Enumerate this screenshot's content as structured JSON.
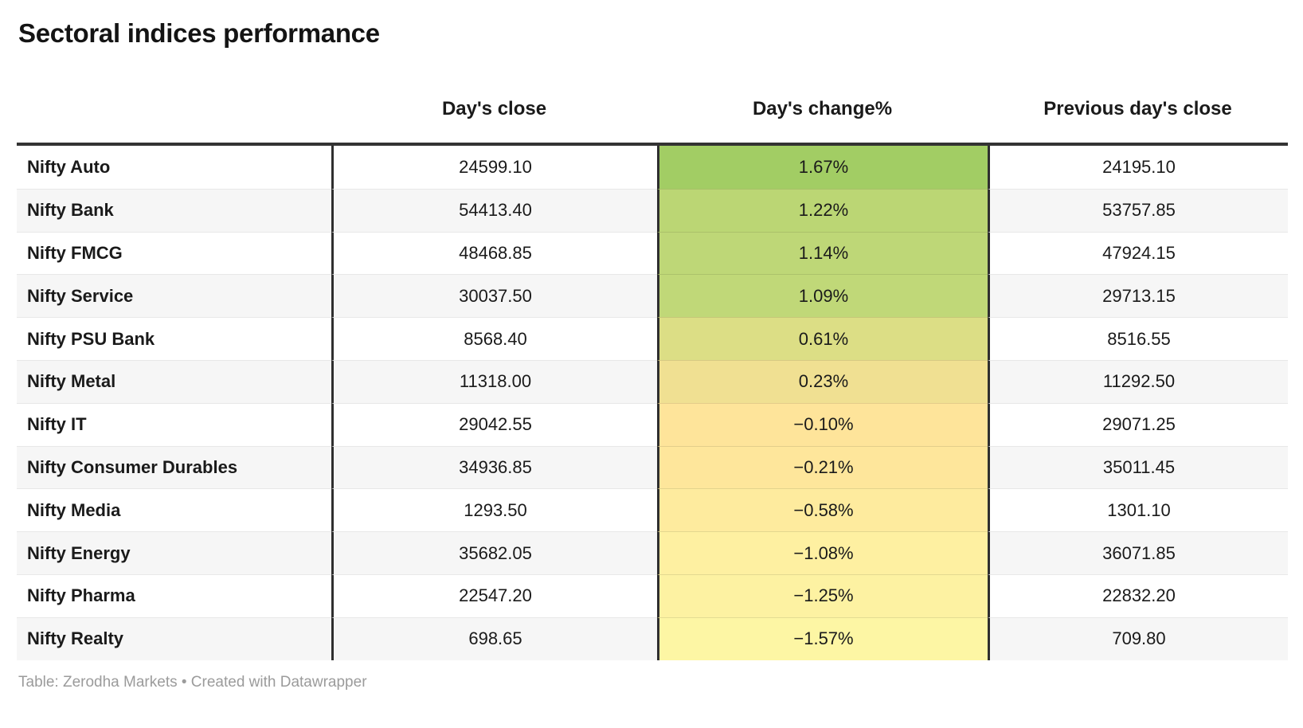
{
  "title": "Sectoral indices performance",
  "columns": {
    "label": "",
    "close": "Day's close",
    "change": "Day's change%",
    "prev": "Previous day's close"
  },
  "rows": [
    {
      "label": "Nifty Auto",
      "close": "24599.10",
      "change": "1.67%",
      "prev": "24195.10",
      "color": "#a2cd64"
    },
    {
      "label": "Nifty Bank",
      "close": "54413.40",
      "change": "1.22%",
      "prev": "53757.85",
      "color": "#bbd674"
    },
    {
      "label": "Nifty FMCG",
      "close": "48468.85",
      "change": "1.14%",
      "prev": "47924.15",
      "color": "#bed777"
    },
    {
      "label": "Nifty Service",
      "close": "30037.50",
      "change": "1.09%",
      "prev": "29713.15",
      "color": "#c0d878"
    },
    {
      "label": "Nifty PSU Bank",
      "close": "8568.40",
      "change": "0.61%",
      "prev": "8516.55",
      "color": "#dcde85"
    },
    {
      "label": "Nifty Metal",
      "close": "11318.00",
      "change": "0.23%",
      "prev": "11292.50",
      "color": "#f0e092"
    },
    {
      "label": "Nifty IT",
      "close": "29042.55",
      "change": "−0.10%",
      "prev": "29071.25",
      "color": "#fee49a"
    },
    {
      "label": "Nifty Consumer Durables",
      "close": "34936.85",
      "change": "−0.21%",
      "prev": "35011.45",
      "color": "#fee69b"
    },
    {
      "label": "Nifty Media",
      "close": "1293.50",
      "change": "−0.58%",
      "prev": "1301.10",
      "color": "#feeb9e"
    },
    {
      "label": "Nifty Energy",
      "close": "35682.05",
      "change": "−1.08%",
      "prev": "36071.85",
      "color": "#fef0a1"
    },
    {
      "label": "Nifty Pharma",
      "close": "22547.20",
      "change": "−1.25%",
      "prev": "22832.20",
      "color": "#fdf2a2"
    },
    {
      "label": "Nifty Realty",
      "close": "698.65",
      "change": "−1.57%",
      "prev": "709.80",
      "color": "#fdf6a4"
    }
  ],
  "footer": "Table: Zerodha Markets • Created with Datawrapper",
  "style_colors": {
    "border_dark": "#333333",
    "row_stripe": "#f6f6f6",
    "row_separator": "#e8e8e8",
    "footer_text": "#9b9b9b",
    "heatmap_max_green": "#a2cd64",
    "heatmap_min_yellow": "#fdf6a4"
  },
  "chart_data": {
    "type": "table",
    "title": "Sectoral indices performance",
    "columns": [
      "",
      "Day's close",
      "Day's change%",
      "Previous day's close"
    ],
    "rows": [
      [
        "Nifty Auto",
        24599.1,
        1.67,
        24195.1
      ],
      [
        "Nifty Bank",
        54413.4,
        1.22,
        53757.85
      ],
      [
        "Nifty FMCG",
        48468.85,
        1.14,
        47924.15
      ],
      [
        "Nifty Service",
        30037.5,
        1.09,
        29713.15
      ],
      [
        "Nifty PSU Bank",
        8568.4,
        0.61,
        8516.55
      ],
      [
        "Nifty Metal",
        11318.0,
        0.23,
        11292.5
      ],
      [
        "Nifty IT",
        29042.55,
        -0.1,
        29071.25
      ],
      [
        "Nifty Consumer Durables",
        34936.85,
        -0.21,
        35011.45
      ],
      [
        "Nifty Media",
        1293.5,
        -0.58,
        1301.1
      ],
      [
        "Nifty Energy",
        35682.05,
        -1.08,
        36071.85
      ],
      [
        "Nifty Pharma",
        22547.2,
        -1.25,
        22832.2
      ],
      [
        "Nifty Realty",
        698.65,
        -1.57,
        709.8
      ]
    ],
    "heatmap_column": "Day's change%",
    "heatmap_scale": "green (positive high) to pale yellow (negative low)",
    "source_note": "Table: Zerodha Markets • Created with Datawrapper"
  }
}
